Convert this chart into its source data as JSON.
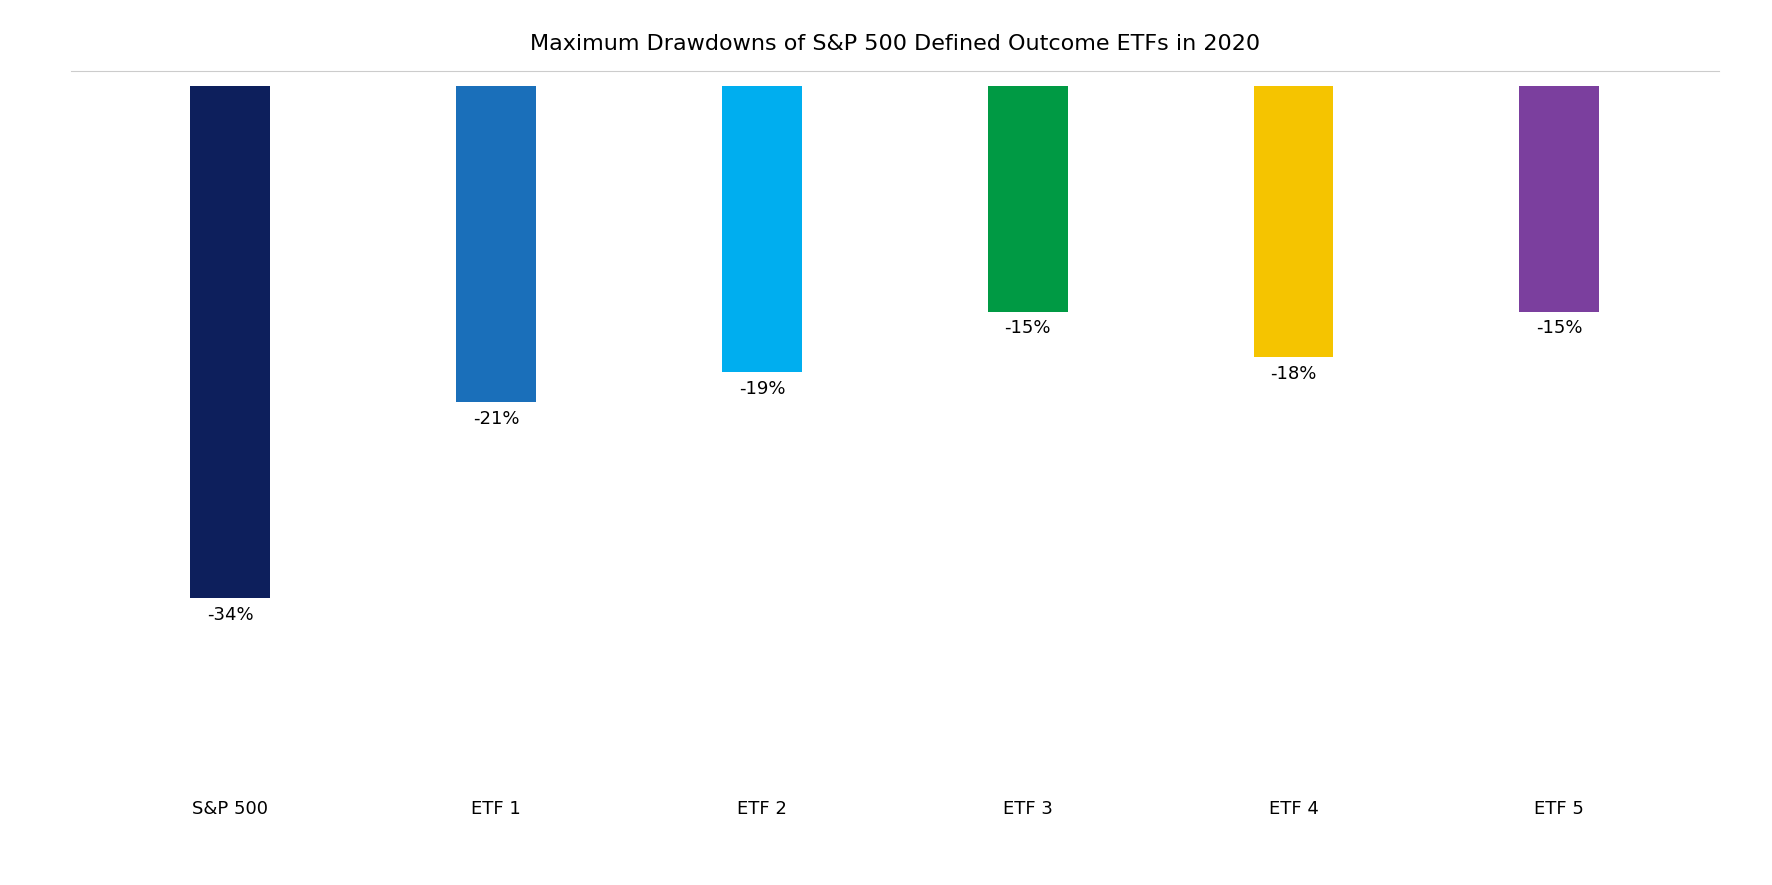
{
  "categories": [
    "S&P 500",
    "ETF 1",
    "ETF 2",
    "ETF 3",
    "ETF 4",
    "ETF 5"
  ],
  "values": [
    -34,
    -21,
    -19,
    -15,
    -18,
    -15
  ],
  "labels": [
    "-34%",
    "-21%",
    "-19%",
    "-15%",
    "-18%",
    "-15%"
  ],
  "bar_colors": [
    "#0d1f5c",
    "#1a6fba",
    "#00aeef",
    "#009a44",
    "#f5c400",
    "#7b3f9e"
  ],
  "title": "Maximum Drawdowns of S&P 500 Defined Outcome ETFs in 2020",
  "title_fontsize": 16,
  "label_fontsize": 13,
  "tick_fontsize": 13,
  "ylim": [
    -46,
    1
  ],
  "background_color": "#ffffff",
  "bar_width": 0.3
}
